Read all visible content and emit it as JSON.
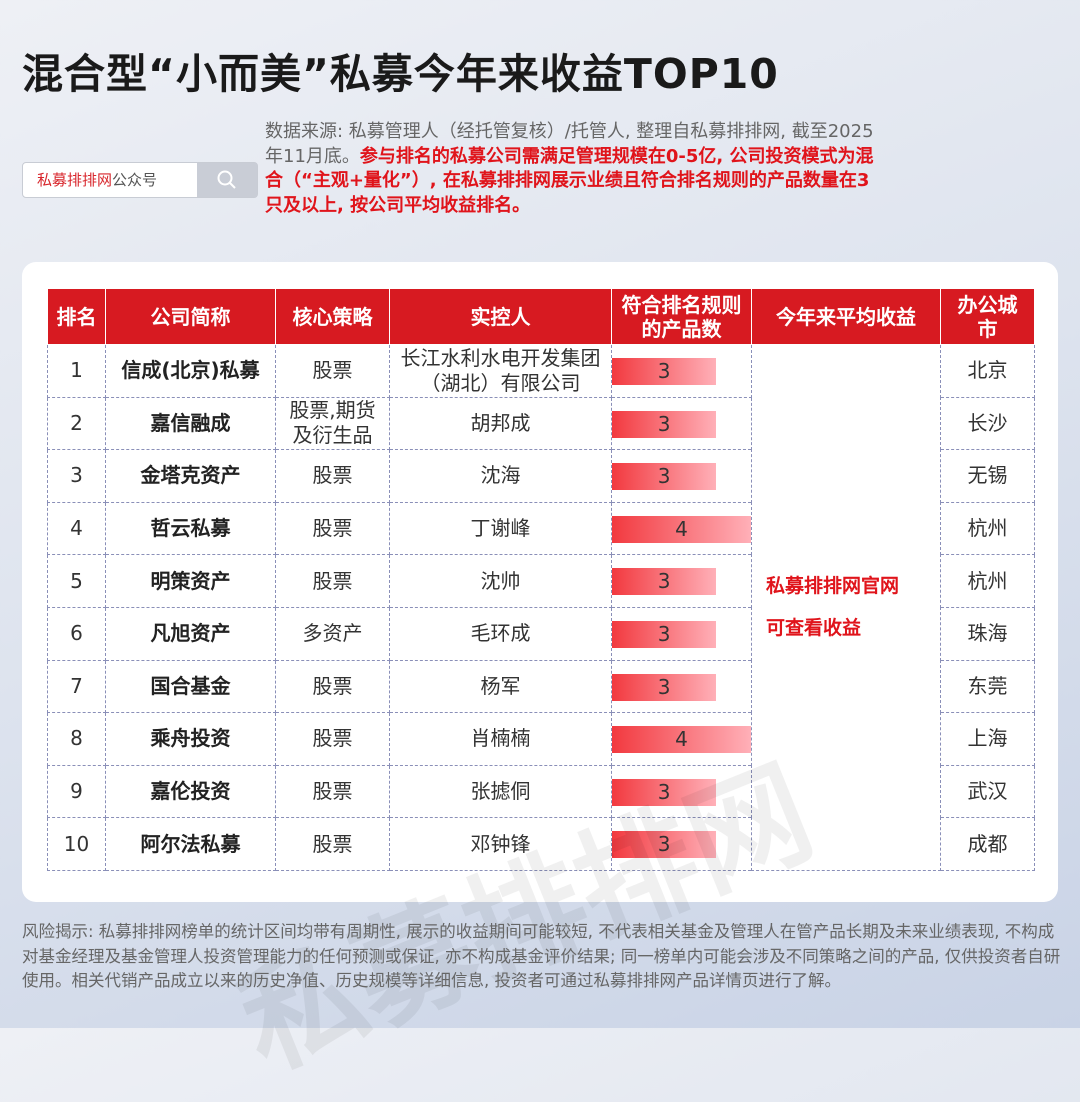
{
  "title": "混合型“小而美”私募今年来收益TOP10",
  "search": {
    "label_red": "私募排排网",
    "label_gray": "公众号",
    "icon": "search-icon"
  },
  "note": {
    "gray": "数据来源: 私募管理人（经托管复核）/托管人, 整理自私募排排网, 截至2025年11月底。",
    "red": "参与排名的私募公司需满足管理规模在0-5亿, 公司投资模式为混合（“主观+量化”）, 在私募排排网展示业绩且符合排名规则的产品数量在3只及以上, 按公司平均收益排名。"
  },
  "table": {
    "headers": [
      "排名",
      "公司简称",
      "核心策略",
      "实控人",
      "符合排名规则的产品数",
      "今年来平均收益",
      "办公城市"
    ],
    "return_note": [
      "私募排排网官网",
      "可查看收益"
    ],
    "max_count": 4,
    "rows": [
      {
        "rank": "1",
        "name": "信成(北京)私募",
        "strategy": "股票",
        "controller": "长江水利水电开发集团（湖北）有限公司",
        "count": 3,
        "city": "北京"
      },
      {
        "rank": "2",
        "name": "嘉信融成",
        "strategy": "股票,期货及衍生品",
        "controller": "胡邦成",
        "count": 3,
        "city": "长沙"
      },
      {
        "rank": "3",
        "name": "金塔克资产",
        "strategy": "股票",
        "controller": "沈海",
        "count": 3,
        "city": "无锡"
      },
      {
        "rank": "4",
        "name": "哲云私募",
        "strategy": "股票",
        "controller": "丁谢峰",
        "count": 4,
        "city": "杭州"
      },
      {
        "rank": "5",
        "name": "明策资产",
        "strategy": "股票",
        "controller": "沈帅",
        "count": 3,
        "city": "杭州"
      },
      {
        "rank": "6",
        "name": "凡旭资产",
        "strategy": "多资产",
        "controller": "毛环成",
        "count": 3,
        "city": "珠海"
      },
      {
        "rank": "7",
        "name": "国合基金",
        "strategy": "股票",
        "controller": "杨军",
        "count": 3,
        "city": "东莞"
      },
      {
        "rank": "8",
        "name": "乘舟投资",
        "strategy": "股票",
        "controller": "肖楠楠",
        "count": 4,
        "city": "上海"
      },
      {
        "rank": "9",
        "name": "嘉伦投资",
        "strategy": "股票",
        "controller": "张摅侗",
        "count": 3,
        "city": "武汉"
      },
      {
        "rank": "10",
        "name": "阿尔法私募",
        "strategy": "股票",
        "controller": "邓钟锋",
        "count": 3,
        "city": "成都"
      }
    ]
  },
  "watermark": "私募排排网",
  "risk": "风险揭示: 私募排排网榜单的统计区间均带有周期性, 展示的收益期间可能较短, 不代表相关基金及管理人在管产品长期及未来业绩表现, 不构成对基金经理及基金管理人投资管理能力的任何预测或保证, 亦不构成基金评价结果; 同一榜单内可能会涉及不同策略之间的产品, 仅供投资者自研使用。相关代销产品成立以来的历史净值、历史规模等详细信息, 投资者可通过私募排排网产品详情页进行了解。"
}
